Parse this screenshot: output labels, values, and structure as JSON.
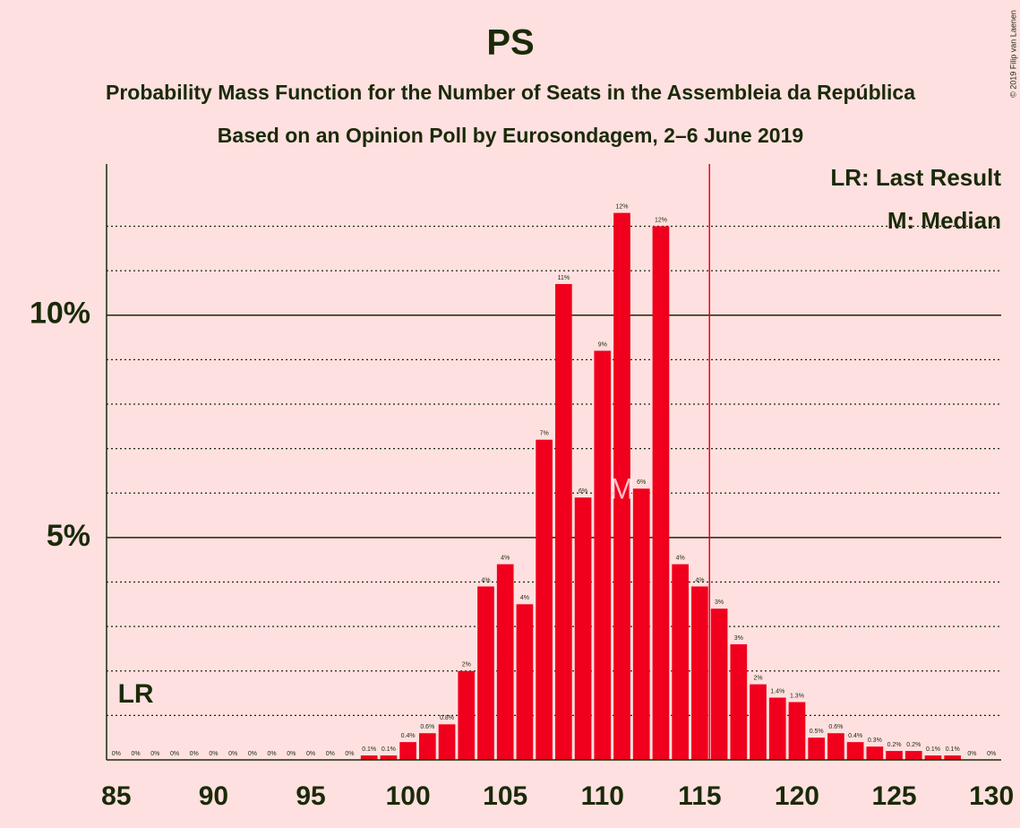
{
  "chart_data": {
    "type": "bar",
    "title": "PS",
    "subtitle": "Probability Mass Function for the Number of Seats in the Assembleia da República",
    "subtitle2": "Based on an Opinion Poll by Eurosondagem, 2–6 June 2019",
    "copyright": "© 2019 Filip van Laenen",
    "x": [
      85,
      86,
      87,
      88,
      89,
      90,
      91,
      92,
      93,
      94,
      95,
      96,
      97,
      98,
      99,
      100,
      101,
      102,
      103,
      104,
      105,
      106,
      107,
      108,
      109,
      110,
      111,
      112,
      113,
      114,
      115,
      116,
      117,
      118,
      119,
      120,
      121,
      122,
      123,
      124,
      125,
      126,
      127,
      128,
      129,
      130
    ],
    "values": [
      0,
      0,
      0,
      0,
      0,
      0,
      0,
      0,
      0,
      0,
      0,
      0,
      0,
      0.1,
      0.1,
      0.4,
      0.6,
      0.8,
      2,
      3.9,
      4.4,
      3.5,
      7.2,
      10.7,
      5.9,
      9.2,
      12.3,
      6.1,
      12.0,
      4.4,
      3.9,
      3.4,
      2.6,
      1.7,
      1.4,
      1.3,
      0.5,
      0.6,
      0.4,
      0.3,
      0.2,
      0.2,
      0.1,
      0.1,
      0,
      0
    ],
    "value_labels": [
      "0%",
      "0%",
      "0%",
      "0%",
      "0%",
      "0%",
      "0%",
      "0%",
      "0%",
      "0%",
      "0%",
      "0%",
      "0%",
      "0.1%",
      "0.1%",
      "0.4%",
      "0.6%",
      "0.8%",
      "2%",
      "4%",
      "4%",
      "4%",
      "7%",
      "11%",
      "6%",
      "9%",
      "12%",
      "6%",
      "12%",
      "4%",
      "4%",
      "3%",
      "3%",
      "2%",
      "1.4%",
      "1.3%",
      "0.5%",
      "0.6%",
      "0.4%",
      "0.3%",
      "0.2%",
      "0.2%",
      "0.1%",
      "0.1%",
      "0%",
      "0%"
    ],
    "color": "#f0001c",
    "xlim": [
      84.5,
      130.5
    ],
    "xticks": [
      85,
      90,
      95,
      100,
      105,
      110,
      115,
      120,
      125,
      130
    ],
    "ylim": [
      0,
      13.4
    ],
    "yticks": [
      {
        "value": 5,
        "label": "5%"
      },
      {
        "value": 10,
        "label": "10%"
      }
    ],
    "minor_gridlines": [
      1,
      2,
      3,
      4,
      6,
      7,
      8,
      9,
      11,
      12
    ],
    "majority_line": 115.5,
    "last_result": {
      "x": 86,
      "label": "LR"
    },
    "median": {
      "x": 111,
      "label": "M"
    },
    "legend": [
      "LR: Last Result",
      "M: Median"
    ]
  }
}
